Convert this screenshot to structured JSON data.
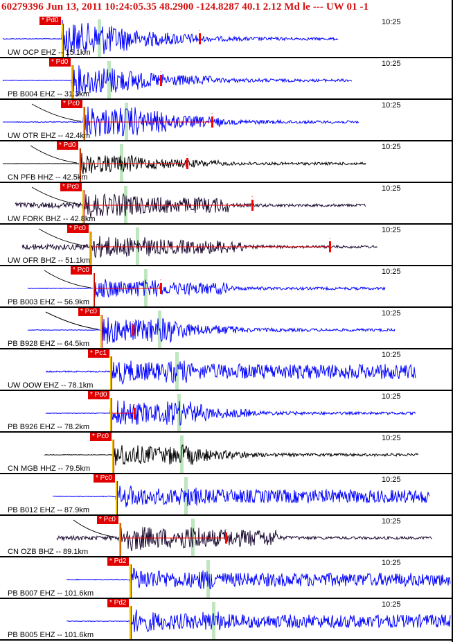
{
  "header": {
    "text": "60279396 Jun 13, 2011 10:24:05.35   48.2900 -124.8287 40.1 2.12 Md le --- UW 01   -1"
  },
  "colors": {
    "header": "#d21010",
    "pick_box": "#e00000",
    "trace_blue": "#0000ff",
    "trace_black": "#000000",
    "trace_dark": "#1a0a30",
    "s_marker": "#bfe6bf",
    "p_marker": "#e8c000",
    "overlay_red": "#ff0000"
  },
  "panels": [
    {
      "time": "10:25",
      "label": "UW OCP EHZ -- 15.1km",
      "pick": "* Pd0"
    },
    {
      "time": "10:25",
      "label": "PB B004 EHZ -- 31.3km",
      "pick": "* Pd0"
    },
    {
      "time": "10:25",
      "label": "UW OTR EHZ -- 42.4km",
      "pick": "* Pc0"
    },
    {
      "time": "10:25",
      "label": "CN PFB HHZ -- 42.5km",
      "pick": "* Pd0"
    },
    {
      "time": "10:25",
      "label": "UW FORK BHZ -- 42.8km",
      "pick": "* Pc0"
    },
    {
      "time": "10:25",
      "label": "UW OFR BHZ -- 51.1km",
      "pick": "* Pc0"
    },
    {
      "time": "10:25",
      "label": "PB B003 EHZ -- 56.9km",
      "pick": "* Pc0"
    },
    {
      "time": "10:25",
      "label": "PB B928 EHZ -- 64.5km",
      "pick": "* Pc0"
    },
    {
      "time": "10:25",
      "label": "UW OOW EHZ -- 78.1km",
      "pick": "* Pc1"
    },
    {
      "time": "10:25",
      "label": "PB B926 EHZ -- 78.2km",
      "pick": "* Pd0"
    },
    {
      "time": "10:25",
      "label": "CN MGB HHZ -- 79.5km",
      "pick": "* Pc0"
    },
    {
      "time": "10:25",
      "label": "PB B012 EHZ -- 87.9km",
      "pick": "* Pc0"
    },
    {
      "time": "10:25",
      "label": "CN OZB BHZ -- 89.1km",
      "pick": "* Pc0"
    },
    {
      "time": "10:25",
      "label": "PB B007 EHZ -- 101.6km",
      "pick": "* Pd2"
    },
    {
      "time": "10:25",
      "label": "PB B005 EHZ -- 101.6km",
      "pick": "* Pd2"
    }
  ]
}
